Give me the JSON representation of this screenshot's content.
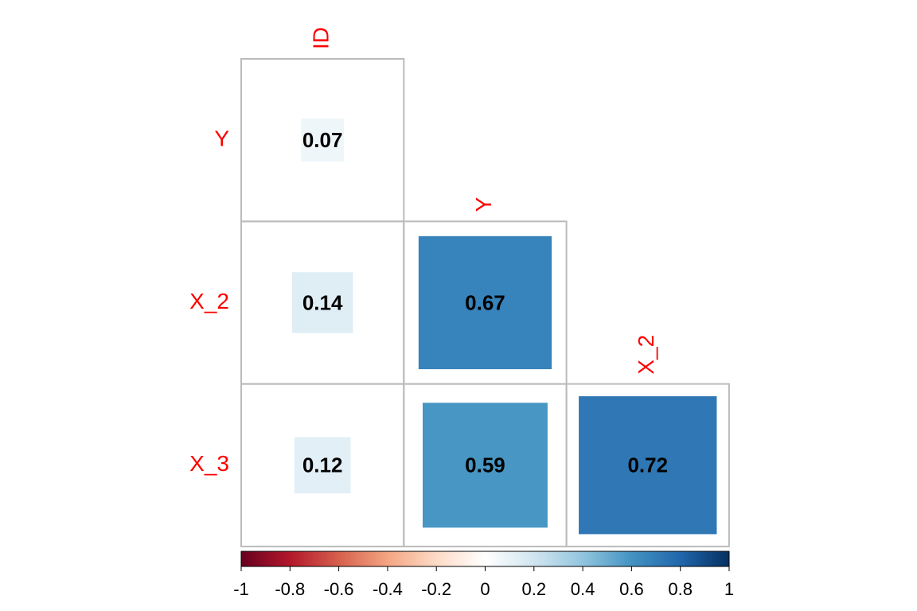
{
  "chart_data": {
    "type": "corrplot",
    "rows": [
      "Y",
      "X_2",
      "X_3"
    ],
    "columns": [
      "ID",
      "Y",
      "X_2"
    ],
    "values": [
      [
        0.07,
        null,
        null
      ],
      [
        0.14,
        0.67,
        null
      ],
      [
        0.12,
        0.59,
        0.72
      ]
    ],
    "clim": [
      -1,
      1
    ],
    "cticks": [
      -1,
      -0.8,
      -0.6,
      -0.4,
      -0.2,
      0,
      0.2,
      0.4,
      0.6,
      0.8,
      1
    ],
    "colors": [
      "#67001F",
      "#B2182B",
      "#D6604D",
      "#F4A582",
      "#FDDBC7",
      "#FFFFFF",
      "#D1E5F0",
      "#92C5DE",
      "#4393C3",
      "#2166AC",
      "#053061"
    ]
  }
}
